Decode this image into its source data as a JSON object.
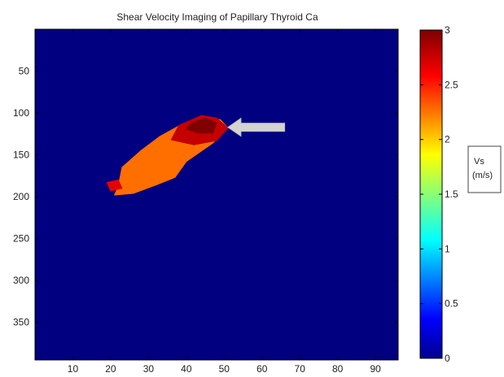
{
  "chart_data": {
    "type": "heatmap",
    "title": "Shear Velocity Imaging of Papillary Thyroid Ca",
    "xlabel": "",
    "ylabel": "",
    "xlim": [
      0,
      96
    ],
    "ylim": [
      395,
      0
    ],
    "x_ticks": [
      10,
      20,
      30,
      40,
      50,
      60,
      70,
      80,
      90
    ],
    "y_ticks": [
      50,
      100,
      150,
      200,
      250,
      300,
      350
    ],
    "grid": false,
    "background_value": 0,
    "colormap": "jet",
    "colorbar": {
      "range": [
        0,
        3
      ],
      "ticks": [
        0,
        0.5,
        1,
        1.5,
        2,
        2.5,
        3
      ],
      "tick_labels": [
        "0",
        "0.5",
        "1",
        "1.5",
        "2",
        "2.5",
        "3"
      ],
      "unit_label_line1": "Vs",
      "unit_label_line2": "(m/s)"
    },
    "regions": [
      {
        "name": "lesion-body",
        "value": 2.3,
        "polygon": [
          [
            22,
            188
          ],
          [
            23,
            165
          ],
          [
            28,
            145
          ],
          [
            33,
            128
          ],
          [
            39,
            113
          ],
          [
            44,
            104
          ],
          [
            49,
            108
          ],
          [
            51,
            118
          ],
          [
            47,
            136
          ],
          [
            40,
            158
          ],
          [
            37,
            177
          ],
          [
            32,
            186
          ],
          [
            26,
            196
          ],
          [
            21,
            198
          ]
        ]
      },
      {
        "name": "lesion-high-velocity",
        "value": 2.8,
        "polygon": [
          [
            38,
            115
          ],
          [
            44,
            103
          ],
          [
            48,
            106
          ],
          [
            51,
            118
          ],
          [
            48,
            133
          ],
          [
            42,
            138
          ],
          [
            36,
            132
          ]
        ]
      },
      {
        "name": "lesion-peak",
        "value": 3.0,
        "polygon": [
          [
            41,
            113
          ],
          [
            45,
            106
          ],
          [
            48,
            112
          ],
          [
            47,
            124
          ],
          [
            43,
            124
          ],
          [
            40,
            119
          ]
        ]
      },
      {
        "name": "lesion-edge-left",
        "value": 2.7,
        "polygon": [
          [
            19,
            183
          ],
          [
            22,
            180
          ],
          [
            23,
            190
          ],
          [
            20,
            193
          ]
        ]
      }
    ],
    "annotations": [
      {
        "type": "arrow",
        "from": [
          66,
          117
        ],
        "to": [
          51,
          117
        ],
        "color": "#d3d3d3"
      }
    ]
  }
}
